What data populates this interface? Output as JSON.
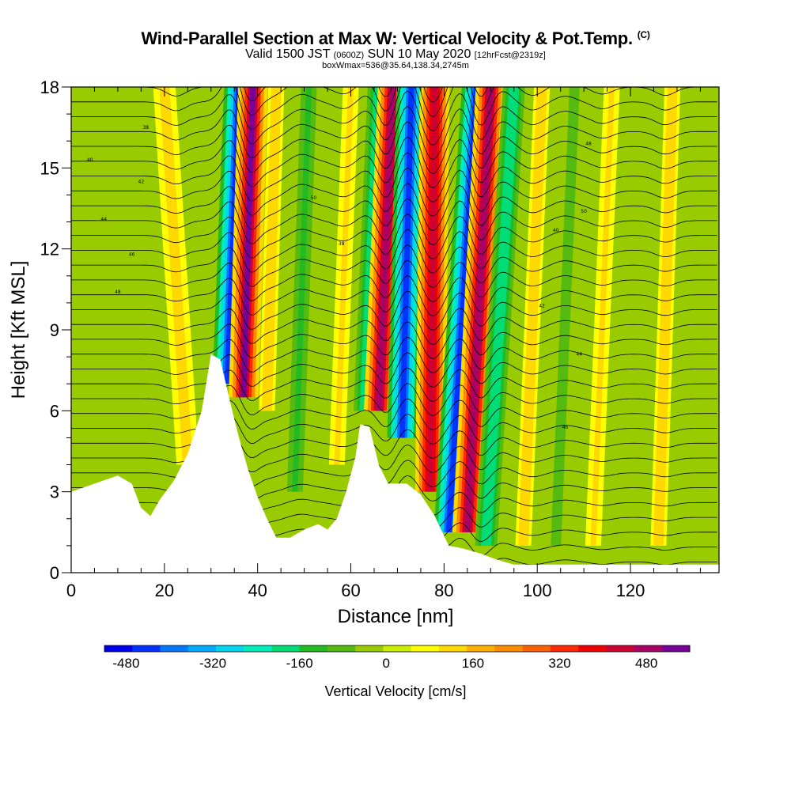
{
  "header": {
    "title": "Wind-Parallel Section at Max W: Vertical Velocity & Pot.Temp.",
    "title_mark": "(C)",
    "subtitle_a": "Valid 1500 JST",
    "subtitle_b": "(0600Z)",
    "subtitle_c": "SUN 10 May 2020",
    "subtitle_d": "[12hrFcst@2319z]",
    "boxline": "boxWmax=536@35.64,138.34,2745m"
  },
  "chart_data": {
    "type": "heatmap",
    "xlabel": "Distance [nm]",
    "ylabel": "Height [Kft MSL]",
    "xlim": [
      0,
      139
    ],
    "ylim": [
      0,
      18
    ],
    "x_ticks": [
      0,
      20,
      40,
      60,
      80,
      100,
      120
    ],
    "y_ticks": [
      0,
      3,
      6,
      9,
      12,
      15,
      18
    ],
    "colorbar": {
      "label": "Vertical Velocity [cm/s]",
      "range": [
        -520,
        560
      ],
      "tick_values": [
        -480,
        -320,
        -160,
        0,
        160,
        320,
        480
      ],
      "tick_labels": [
        "-480",
        "-320",
        "-160",
        "0",
        "160",
        "320",
        "480"
      ],
      "colors": [
        "#0000ee",
        "#0033ff",
        "#0077ff",
        "#00aaff",
        "#00d6ee",
        "#00eebb",
        "#00dd77",
        "#22bb22",
        "#55bb11",
        "#99cc00",
        "#ccee00",
        "#ffff00",
        "#ffd800",
        "#ffb000",
        "#ff8c00",
        "#ff6000",
        "#ff2a00",
        "#ee0000",
        "#cc0033",
        "#aa0066",
        "#770099"
      ]
    },
    "terrain_kft": [
      [
        0,
        3.0
      ],
      [
        5,
        3.3
      ],
      [
        10,
        3.6
      ],
      [
        13,
        3.3
      ],
      [
        15,
        2.4
      ],
      [
        17,
        2.1
      ],
      [
        19,
        2.7
      ],
      [
        22,
        3.4
      ],
      [
        25,
        4.4
      ],
      [
        28,
        6.0
      ],
      [
        30,
        8.1
      ],
      [
        32,
        7.9
      ],
      [
        34,
        6.4
      ],
      [
        36,
        5.0
      ],
      [
        38,
        3.8
      ],
      [
        40,
        2.8
      ],
      [
        42,
        2.0
      ],
      [
        44,
        1.3
      ],
      [
        47,
        1.3
      ],
      [
        50,
        1.6
      ],
      [
        53,
        1.8
      ],
      [
        55,
        1.6
      ],
      [
        57,
        2.0
      ],
      [
        59,
        3.0
      ],
      [
        61,
        4.3
      ],
      [
        62,
        5.5
      ],
      [
        64,
        5.4
      ],
      [
        66,
        4.0
      ],
      [
        68,
        3.3
      ],
      [
        72,
        3.3
      ],
      [
        75,
        2.9
      ],
      [
        78,
        2.1
      ],
      [
        81,
        1.0
      ],
      [
        84,
        0.9
      ],
      [
        88,
        0.7
      ],
      [
        91,
        0.5
      ],
      [
        95,
        0.3
      ],
      [
        100,
        0.3
      ],
      [
        139,
        0.3
      ]
    ],
    "series": [
      {
        "values": [
          [
            25,
            4
          ],
          [
            20,
            18
          ]
        ],
        "w_peak_cm_s": 140
      },
      {
        "values": [
          [
            33.5,
            7
          ],
          [
            36,
            18
          ]
        ],
        "w_peak_cm_s": -480
      },
      {
        "values": [
          [
            37,
            6.5
          ],
          [
            39,
            18
          ]
        ],
        "w_peak_cm_s": 536
      },
      {
        "values": [
          [
            42,
            6
          ],
          [
            44,
            18
          ]
        ],
        "w_peak_cm_s": 130
      },
      {
        "values": [
          [
            48,
            3
          ],
          [
            51,
            18
          ]
        ],
        "w_peak_cm_s": -120
      },
      {
        "values": [
          [
            57,
            4
          ],
          [
            60,
            18
          ]
        ],
        "w_peak_cm_s": 110
      },
      {
        "values": [
          [
            63,
            6
          ],
          [
            66,
            18
          ]
        ],
        "w_peak_cm_s": -200
      },
      {
        "values": [
          [
            66,
            6
          ],
          [
            69,
            18
          ]
        ],
        "w_peak_cm_s": 500
      },
      {
        "values": [
          [
            71,
            5
          ],
          [
            73,
            18
          ]
        ],
        "w_peak_cm_s": -480
      },
      {
        "values": [
          [
            77,
            3
          ],
          [
            78,
            18
          ]
        ],
        "w_peak_cm_s": 480
      },
      {
        "values": [
          [
            81,
            1.5
          ],
          [
            87,
            18
          ]
        ],
        "w_peak_cm_s": -480
      },
      {
        "values": [
          [
            85,
            1.5
          ],
          [
            90,
            18
          ]
        ],
        "w_peak_cm_s": 500
      },
      {
        "values": [
          [
            89,
            1
          ],
          [
            95,
            18
          ]
        ],
        "w_peak_cm_s": -200
      },
      {
        "values": [
          [
            97,
            1
          ],
          [
            101,
            18
          ]
        ],
        "w_peak_cm_s": 130
      },
      {
        "values": [
          [
            104,
            1
          ],
          [
            108,
            18
          ]
        ],
        "w_peak_cm_s": -90
      },
      {
        "values": [
          [
            112,
            1
          ],
          [
            116,
            18
          ]
        ],
        "w_peak_cm_s": 110
      },
      {
        "values": [
          [
            126,
            1
          ],
          [
            129,
            18
          ]
        ],
        "w_peak_cm_s": 130
      }
    ],
    "theta_contour_labels": [
      "38",
      "40",
      "42",
      "44",
      "46",
      "48",
      "50"
    ]
  }
}
